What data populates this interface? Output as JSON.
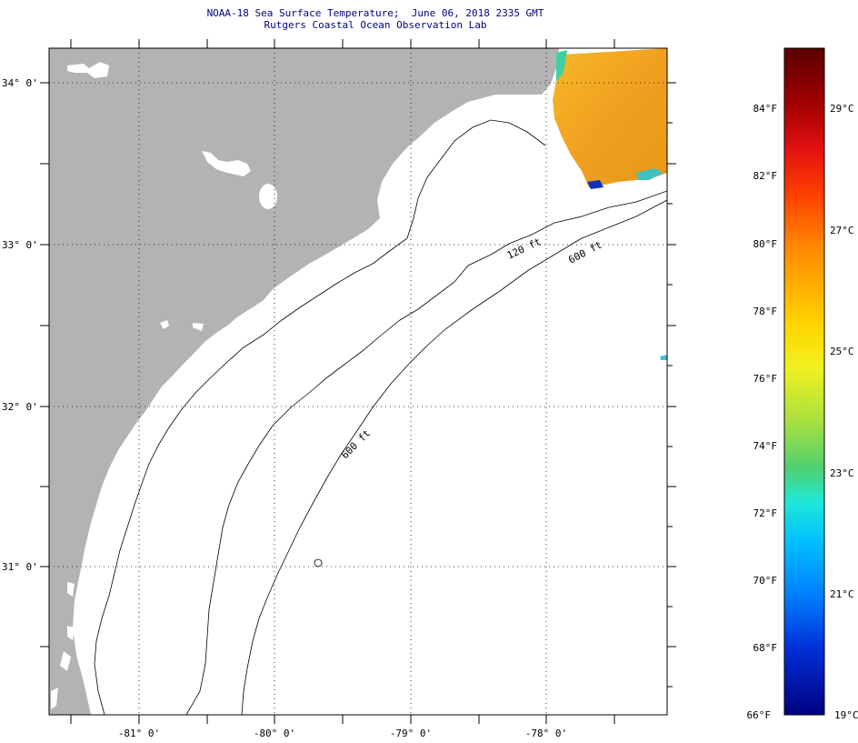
{
  "title": "NOAA-18 Sea Surface Temperature;  June 06, 2018 2335 GMT",
  "subtitle": "Rutgers Coastal Ocean Observation Lab",
  "lat_labels": [
    "34° 0'",
    "33° 0'",
    "32° 0'",
    "31° 0'"
  ],
  "lon_labels": [
    "-81° 0'",
    "-80° 0'",
    "-79° 0'",
    "-78° 0'"
  ],
  "contour_labels": [
    "120 ft",
    "600 ft",
    "600 ft"
  ],
  "colorbar": {
    "f_labels": [
      "84°F",
      "82°F",
      "80°F",
      "78°F",
      "76°F",
      "74°F",
      "72°F",
      "70°F",
      "68°F",
      "66°F"
    ],
    "c_labels": [
      "29°C",
      "27°C",
      "25°C",
      "23°C",
      "21°C",
      "19°C"
    ],
    "colors": [
      "#5a0000",
      "#a00000",
      "#e01010",
      "#ff3000",
      "#ff7000",
      "#ffa000",
      "#ffd000",
      "#f0f020",
      "#a0e040",
      "#50d070",
      "#20e0d0",
      "#00c0ff",
      "#0080ff",
      "#0040e0",
      "#0010c0",
      "#000080"
    ]
  },
  "colors": {
    "land": "#b3b3b3",
    "ocean": "#ffffff",
    "sst_warm": "#f0a020",
    "title_text": "#00008b"
  }
}
